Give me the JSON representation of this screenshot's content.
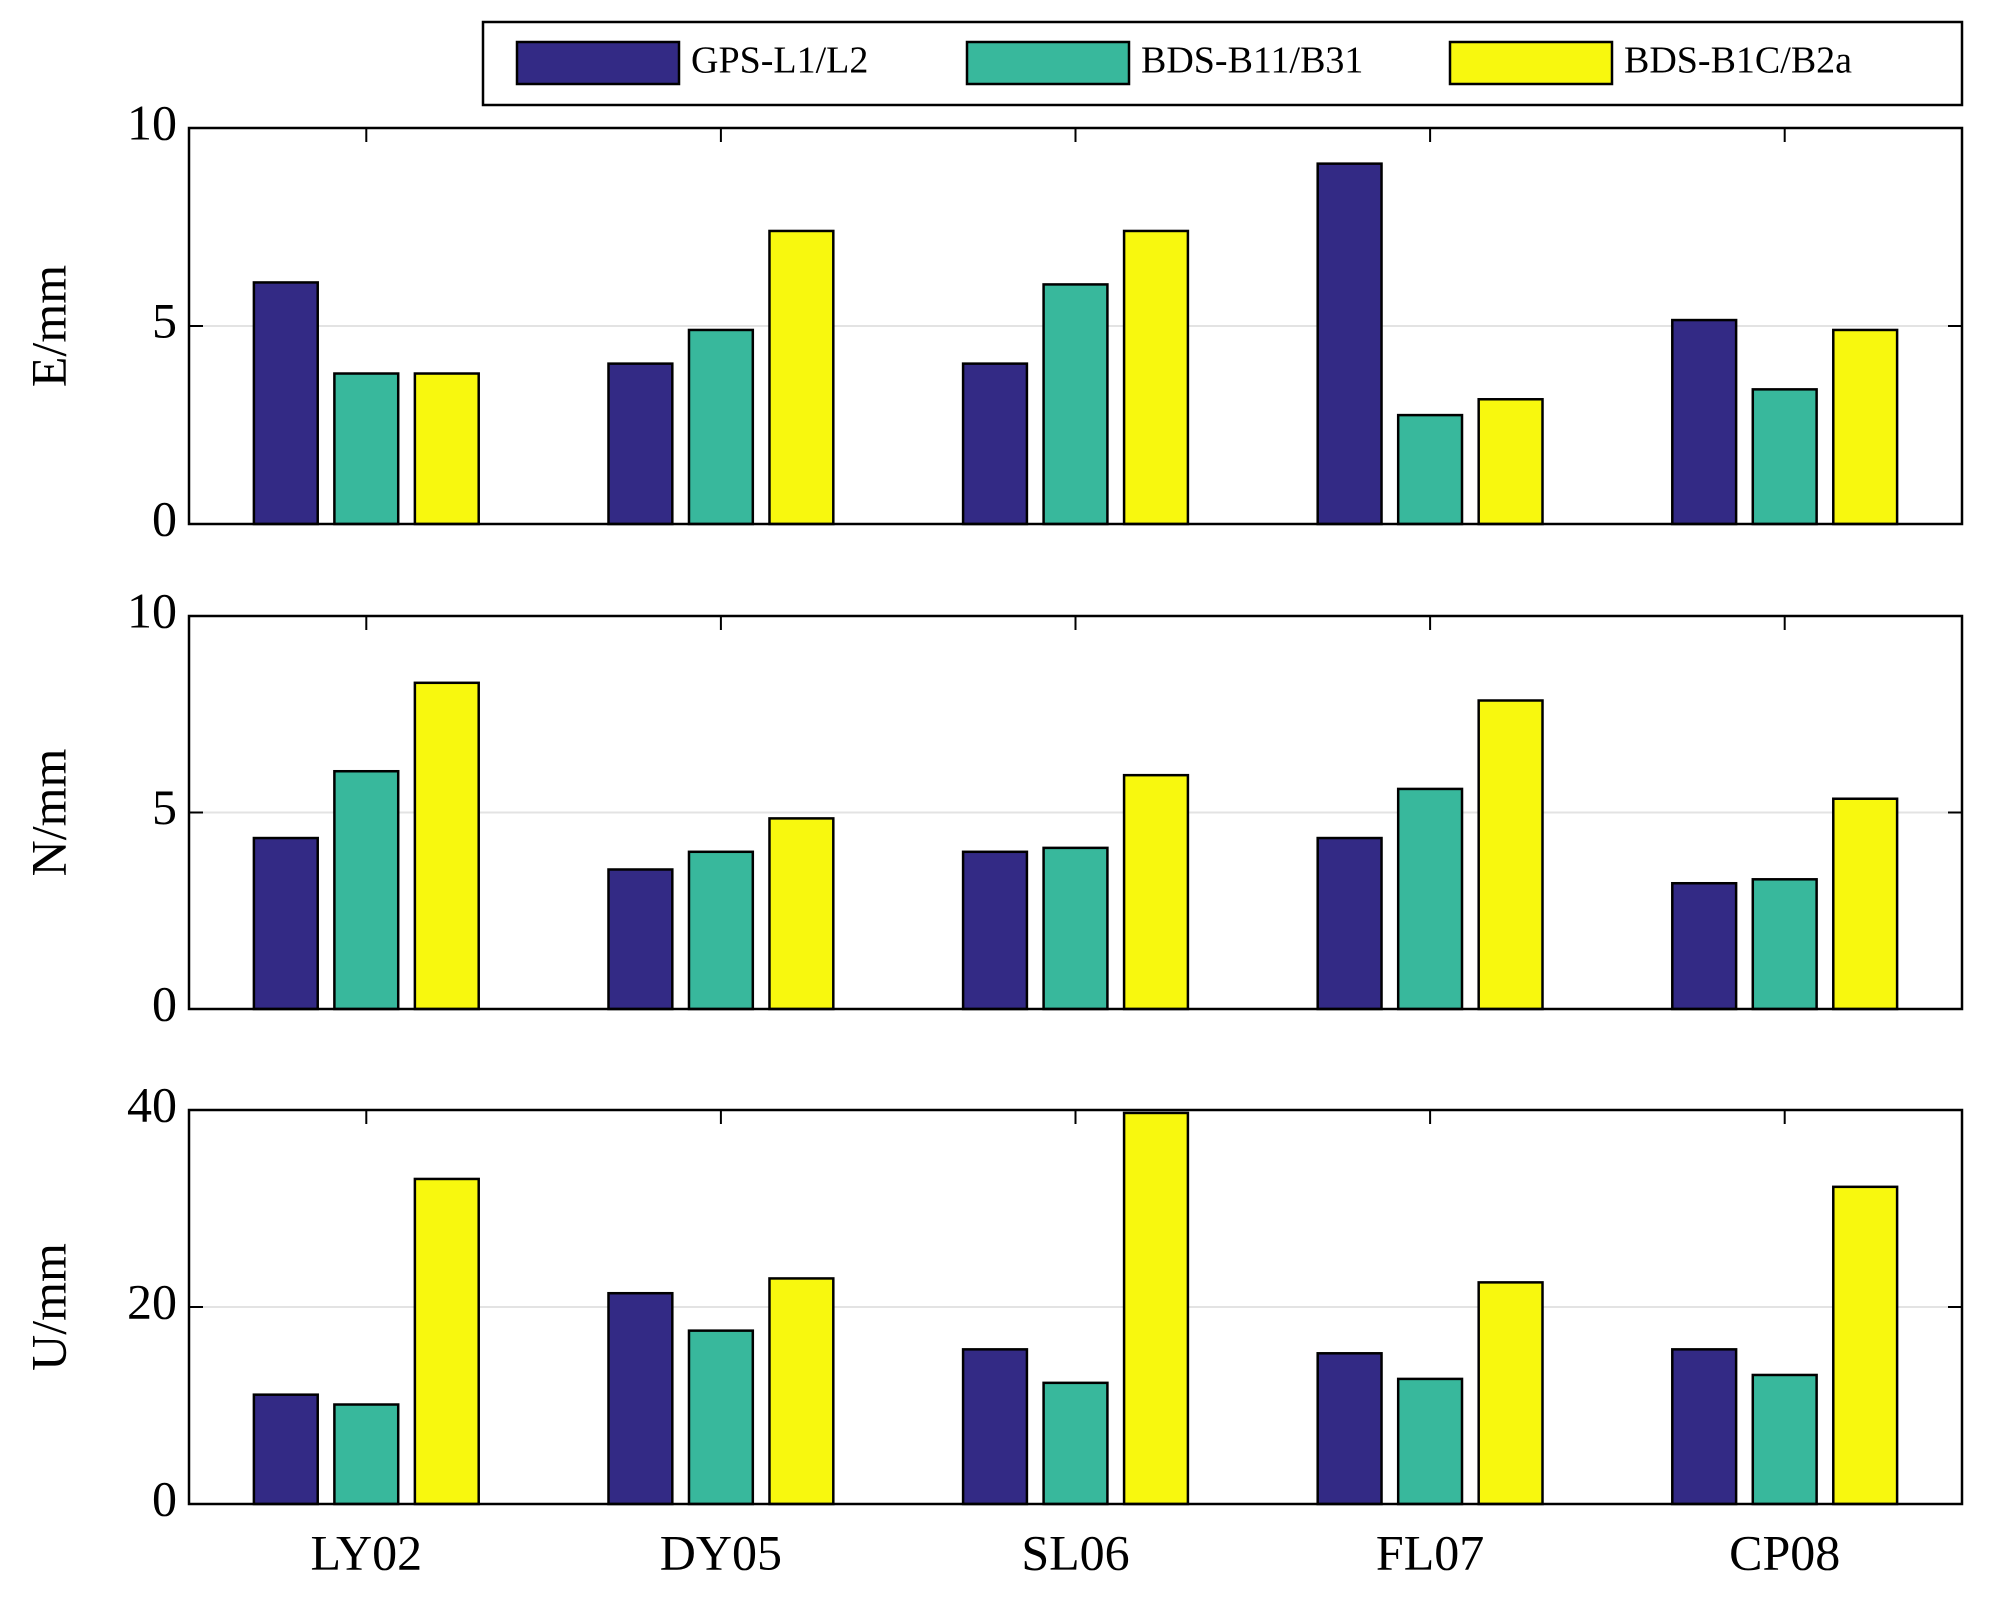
{
  "chart_data": [
    {
      "type": "bar",
      "ylabel": "E/mm",
      "ylim": [
        0,
        10
      ],
      "yticks": [
        0,
        5,
        10
      ],
      "grid": true,
      "legend": "top-right",
      "series": [
        {
          "name": "GPS-L1/L2",
          "color": "#332a85",
          "values": [
            6.1,
            4.05,
            4.05,
            9.1,
            5.15
          ]
        },
        {
          "name": "BDS-B11/B31",
          "color": "#38b89c",
          "values": [
            3.8,
            4.9,
            6.05,
            2.75,
            3.4
          ]
        },
        {
          "name": "BDS-B1C/B2a",
          "color": "#f8f80e",
          "values": [
            3.8,
            7.4,
            7.4,
            3.15,
            4.9
          ]
        }
      ]
    },
    {
      "type": "bar",
      "ylabel": "N/mm",
      "ylim": [
        0,
        10
      ],
      "yticks": [
        0,
        5,
        10
      ],
      "grid": true,
      "series": [
        {
          "color": "#332a85",
          "values": [
            4.35,
            3.55,
            4.0,
            4.35,
            3.2
          ]
        },
        {
          "color": "#38b89c",
          "values": [
            6.05,
            4.0,
            4.1,
            5.6,
            3.3
          ]
        },
        {
          "color": "#f8f80e",
          "values": [
            8.3,
            4.85,
            5.95,
            7.85,
            5.35
          ]
        }
      ]
    },
    {
      "type": "bar",
      "ylabel": "U/mm",
      "categories": [
        "LY02",
        "DY05",
        "SL06",
        "FL07",
        "CP08"
      ],
      "ylim": [
        0,
        40
      ],
      "yticks": [
        0,
        20,
        40
      ],
      "grid": true,
      "series": [
        {
          "color": "#332a85",
          "values": [
            11.1,
            21.4,
            15.7,
            15.3,
            15.7
          ]
        },
        {
          "color": "#38b89c",
          "values": [
            10.1,
            17.6,
            12.3,
            12.7,
            13.1
          ]
        },
        {
          "color": "#f8f80e",
          "values": [
            33.0,
            22.9,
            39.7,
            22.5,
            32.2
          ]
        }
      ]
    }
  ]
}
